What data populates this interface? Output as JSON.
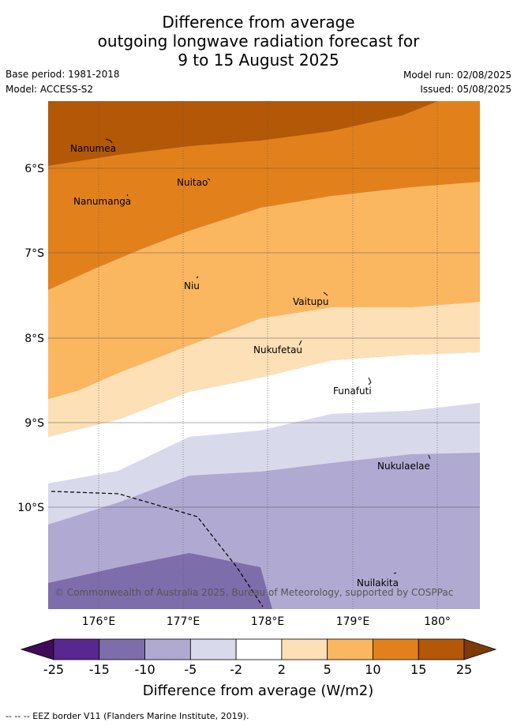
{
  "title": {
    "line1": "Difference from average",
    "line2": "outgoing longwave radiation forecast for",
    "line3": "9 to 15 August 2025"
  },
  "meta": {
    "base_period": "Base period: 1981-2018",
    "model": "Model: ACCESS-S2",
    "model_run": "Model run: 02/08/2025",
    "issued": "Issued: 05/08/2025"
  },
  "map": {
    "lon_ticks": [
      "176°E",
      "177°E",
      "178°E",
      "179°E",
      "180°"
    ],
    "lat_ticks": [
      "6°S",
      "7°S",
      "8°S",
      "9°S",
      "10°S"
    ],
    "places": [
      {
        "name": "Nanumea"
      },
      {
        "name": "Nuitao"
      },
      {
        "name": "Nanumanga"
      },
      {
        "name": "Niu"
      },
      {
        "name": "Vaitupu"
      },
      {
        "name": "Nukufetau"
      },
      {
        "name": "Funafuti"
      },
      {
        "name": "Nukulaelae"
      },
      {
        "name": "Nuilakita"
      }
    ],
    "copyright": "© Commonwealth of Australia 2025, Bureau of Meteorology, supported by COSPPac"
  },
  "colorbar": {
    "ticks": [
      "-25",
      "-15",
      "-10",
      "-5",
      "-2",
      "2",
      "5",
      "10",
      "15",
      "25"
    ],
    "colors": [
      "#3f0a5a",
      "#5a268f",
      "#7e6dab",
      "#b0aad2",
      "#d9d9ec",
      "#ffffff",
      "#fde0b6",
      "#fbb660",
      "#e2811b",
      "#b35807",
      "#7e3b08"
    ],
    "title": "Difference from average (W/m2)"
  },
  "footer": "-- -- -- EEZ border V11 (Flanders Marine Institute, 2019)."
}
